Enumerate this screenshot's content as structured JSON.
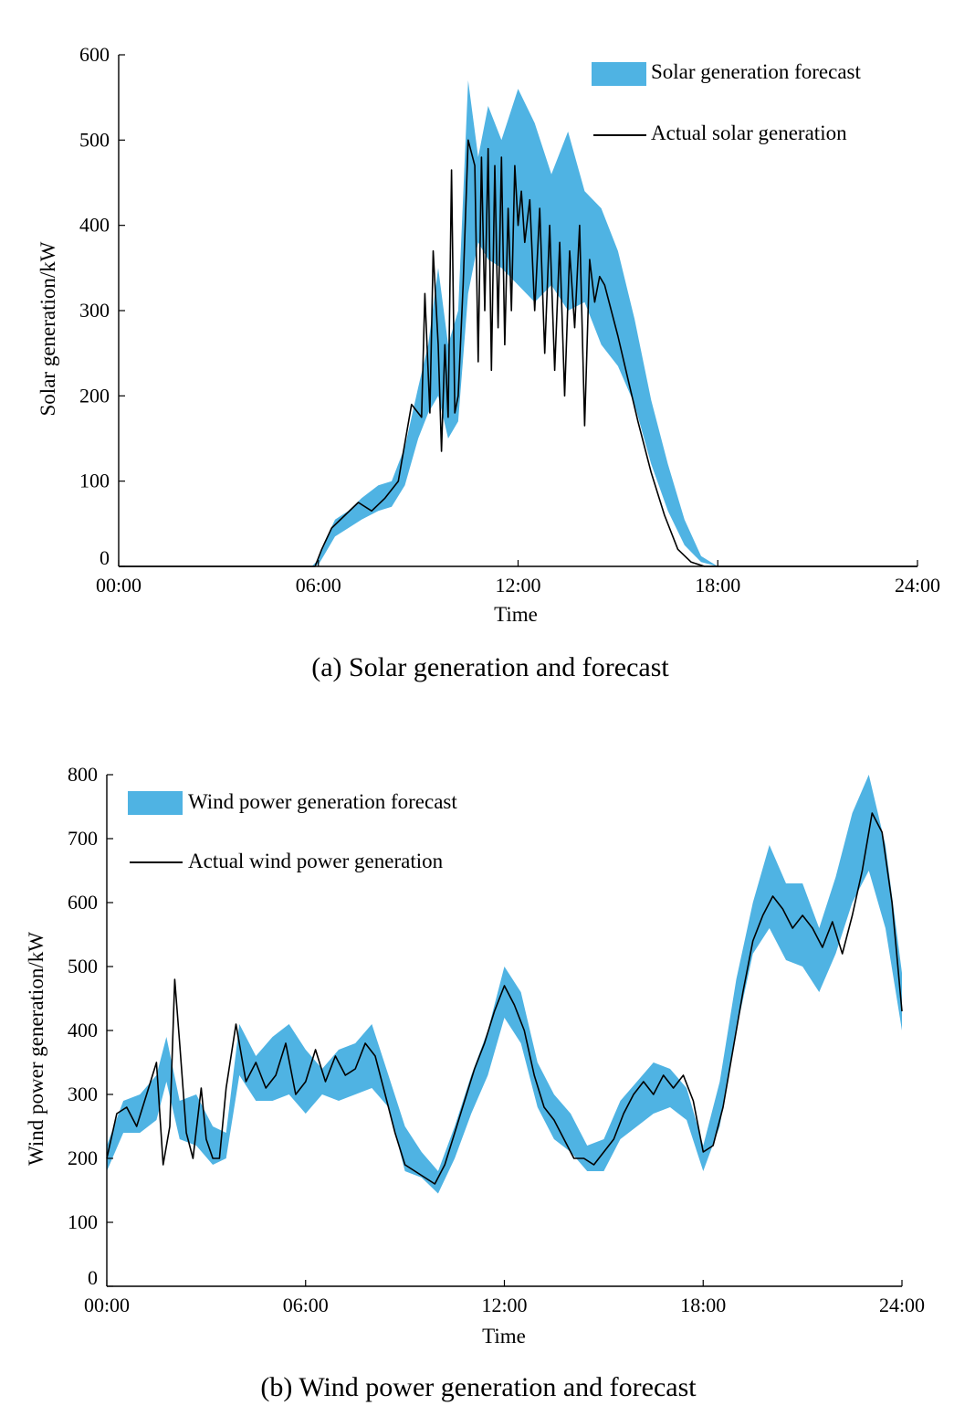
{
  "chart_data": [
    {
      "type": "area",
      "title": "",
      "caption": "(a) Solar generation and forecast",
      "xlabel": "Time",
      "ylabel": "Solar generation/kW",
      "xticks": [
        "00:00",
        "06:00",
        "12:00",
        "18:00",
        "24:00"
      ],
      "yticks": [
        "0",
        "100",
        "200",
        "300",
        "400",
        "500",
        "600"
      ],
      "xlim_hours": [
        0,
        24
      ],
      "ylim": [
        0,
        600
      ],
      "legend_position": "top-right",
      "colors": {
        "forecast": "#4fb3e3",
        "actual": "#000000"
      },
      "series": [
        {
          "name": "Solar generation forecast",
          "style": "band",
          "x_hours": [
            0,
            5.8,
            6.0,
            6.2,
            6.5,
            6.9,
            7.3,
            7.8,
            8.2,
            8.6,
            9.0,
            9.3,
            9.6,
            9.9,
            10.2,
            10.5,
            10.8,
            11.1,
            11.5,
            12.0,
            12.5,
            13.0,
            13.5,
            14.0,
            14.5,
            15.0,
            15.5,
            16.0,
            16.5,
            17.0,
            17.5,
            18.0,
            24.0
          ],
          "lower": [
            0,
            0,
            2,
            15,
            35,
            45,
            55,
            65,
            70,
            95,
            150,
            180,
            200,
            150,
            170,
            320,
            380,
            360,
            350,
            330,
            310,
            330,
            300,
            310,
            260,
            235,
            190,
            120,
            65,
            25,
            5,
            0,
            0
          ],
          "upper": [
            0,
            0,
            8,
            30,
            55,
            65,
            80,
            95,
            100,
            140,
            210,
            260,
            350,
            260,
            300,
            570,
            480,
            540,
            500,
            560,
            520,
            460,
            510,
            440,
            420,
            370,
            290,
            195,
            120,
            55,
            12,
            0,
            0
          ]
        },
        {
          "name": "Actual solar generation",
          "style": "line",
          "x_hours": [
            0,
            5.9,
            6.1,
            6.4,
            6.8,
            7.2,
            7.6,
            8.0,
            8.4,
            8.8,
            9.1,
            9.2,
            9.35,
            9.45,
            9.6,
            9.7,
            9.8,
            9.9,
            10.0,
            10.1,
            10.2,
            10.35,
            10.5,
            10.7,
            10.8,
            10.9,
            11.0,
            11.1,
            11.2,
            11.3,
            11.4,
            11.5,
            11.6,
            11.7,
            11.8,
            11.9,
            12.0,
            12.1,
            12.2,
            12.35,
            12.5,
            12.65,
            12.8,
            12.95,
            13.1,
            13.25,
            13.4,
            13.55,
            13.7,
            13.85,
            14.0,
            14.15,
            14.3,
            14.45,
            14.6,
            14.8,
            15.0,
            15.3,
            15.6,
            16.0,
            16.4,
            16.8,
            17.2,
            17.6,
            18.0,
            24.0
          ],
          "values": [
            0,
            0,
            20,
            45,
            60,
            75,
            65,
            80,
            100,
            190,
            175,
            320,
            180,
            370,
            260,
            135,
            260,
            175,
            465,
            180,
            200,
            330,
            500,
            470,
            240,
            480,
            300,
            490,
            230,
            470,
            280,
            480,
            260,
            420,
            300,
            470,
            400,
            440,
            380,
            430,
            300,
            420,
            250,
            400,
            230,
            380,
            200,
            370,
            280,
            400,
            165,
            360,
            310,
            340,
            330,
            300,
            270,
            220,
            170,
            110,
            60,
            20,
            5,
            0,
            0,
            0
          ]
        }
      ]
    },
    {
      "type": "area",
      "title": "",
      "caption": "(b) Wind power generation and forecast",
      "xlabel": "Time",
      "ylabel": "Wind power generation/kW",
      "xticks": [
        "00:00",
        "06:00",
        "12:00",
        "18:00",
        "24:00"
      ],
      "yticks": [
        "0",
        "100",
        "200",
        "300",
        "400",
        "500",
        "600",
        "700",
        "800"
      ],
      "xlim_hours": [
        0,
        24
      ],
      "ylim": [
        0,
        800
      ],
      "legend_position": "top-left",
      "colors": {
        "forecast": "#4fb3e3",
        "actual": "#000000"
      },
      "series": [
        {
          "name": "Wind power generation forecast",
          "style": "band",
          "x_hours": [
            0,
            0.5,
            1.0,
            1.5,
            1.8,
            2.2,
            2.7,
            3.2,
            3.6,
            4.0,
            4.5,
            5.0,
            5.5,
            6.0,
            6.5,
            7.0,
            7.5,
            8.0,
            8.5,
            9.0,
            9.5,
            10.0,
            10.5,
            11.0,
            11.5,
            12.0,
            12.5,
            13.0,
            13.5,
            14.0,
            14.5,
            15.0,
            15.5,
            16.0,
            16.5,
            17.0,
            17.5,
            18.0,
            18.5,
            19.0,
            19.5,
            20.0,
            20.5,
            21.0,
            21.5,
            22.0,
            22.5,
            23.0,
            23.5,
            24.0
          ],
          "lower": [
            180,
            240,
            240,
            260,
            320,
            230,
            220,
            190,
            200,
            330,
            290,
            290,
            300,
            270,
            300,
            290,
            300,
            310,
            280,
            180,
            170,
            145,
            200,
            270,
            330,
            420,
            380,
            280,
            230,
            210,
            180,
            180,
            230,
            250,
            270,
            280,
            260,
            180,
            250,
            400,
            520,
            560,
            510,
            500,
            460,
            520,
            600,
            650,
            560,
            400
          ],
          "upper": [
            220,
            290,
            300,
            330,
            390,
            290,
            300,
            250,
            240,
            410,
            360,
            390,
            410,
            370,
            340,
            370,
            380,
            410,
            330,
            250,
            210,
            180,
            250,
            330,
            400,
            500,
            460,
            350,
            300,
            270,
            220,
            230,
            290,
            320,
            350,
            340,
            310,
            220,
            320,
            480,
            600,
            690,
            630,
            630,
            560,
            640,
            740,
            800,
            690,
            490
          ]
        },
        {
          "name": "Actual wind power generation",
          "style": "line",
          "x_hours": [
            0,
            0.3,
            0.6,
            0.9,
            1.2,
            1.5,
            1.7,
            1.9,
            2.05,
            2.2,
            2.4,
            2.6,
            2.85,
            3.0,
            3.2,
            3.4,
            3.6,
            3.9,
            4.2,
            4.5,
            4.8,
            5.1,
            5.4,
            5.7,
            6.0,
            6.3,
            6.6,
            6.9,
            7.2,
            7.5,
            7.8,
            8.1,
            8.4,
            8.7,
            9.0,
            9.3,
            9.6,
            9.9,
            10.2,
            10.5,
            10.8,
            11.1,
            11.4,
            11.7,
            12.0,
            12.3,
            12.6,
            12.9,
            13.2,
            13.5,
            13.8,
            14.1,
            14.4,
            14.7,
            15.0,
            15.3,
            15.6,
            15.9,
            16.2,
            16.5,
            16.8,
            17.1,
            17.4,
            17.7,
            18.0,
            18.3,
            18.6,
            18.9,
            19.2,
            19.5,
            19.8,
            20.1,
            20.4,
            20.7,
            21.0,
            21.3,
            21.6,
            21.9,
            22.2,
            22.5,
            22.8,
            23.1,
            23.4,
            23.7,
            24.0
          ],
          "values": [
            200,
            270,
            280,
            250,
            300,
            350,
            190,
            250,
            480,
            380,
            240,
            200,
            310,
            230,
            200,
            200,
            310,
            410,
            320,
            350,
            310,
            330,
            380,
            300,
            320,
            370,
            320,
            360,
            330,
            340,
            380,
            360,
            300,
            240,
            190,
            180,
            170,
            160,
            190,
            240,
            290,
            340,
            380,
            430,
            470,
            440,
            400,
            330,
            280,
            260,
            230,
            200,
            200,
            190,
            210,
            230,
            270,
            300,
            320,
            300,
            330,
            310,
            330,
            290,
            210,
            220,
            280,
            370,
            460,
            540,
            580,
            610,
            590,
            560,
            580,
            560,
            530,
            570,
            520,
            580,
            650,
            740,
            710,
            600,
            430
          ]
        }
      ]
    }
  ]
}
